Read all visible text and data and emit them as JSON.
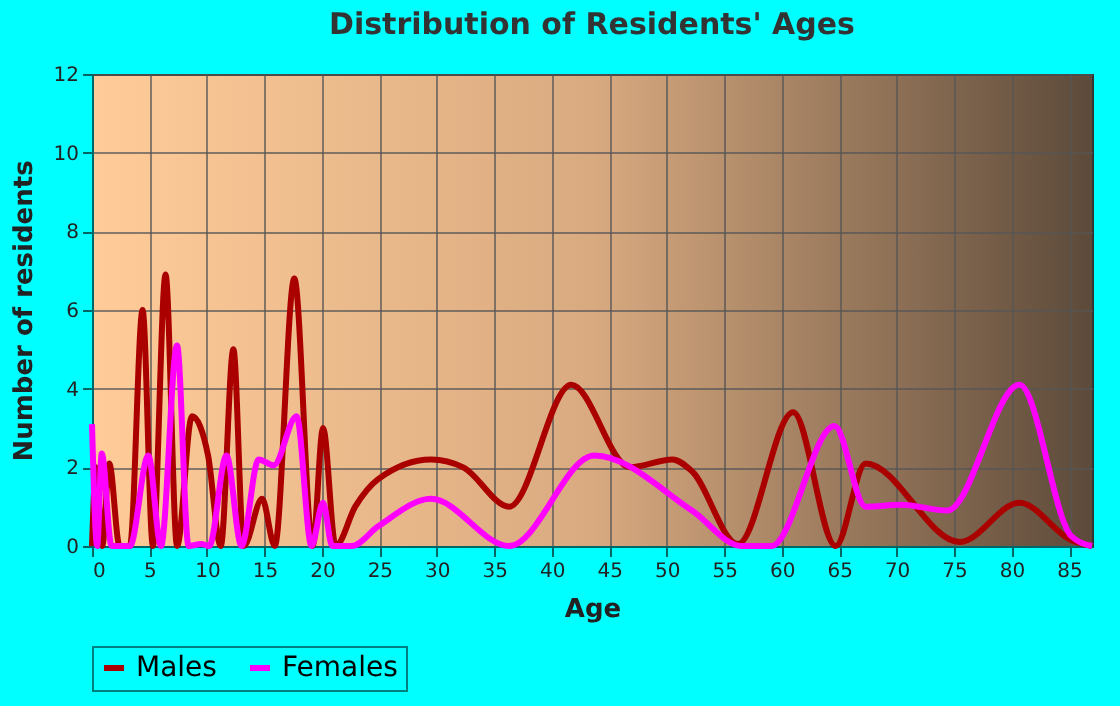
{
  "chart_data": {
    "type": "line",
    "title": "Distribution of Residents' Ages",
    "xlabel": "Age",
    "ylabel": "Number of residents",
    "xlim": [
      0,
      87
    ],
    "xticks": [
      0,
      5,
      10,
      15,
      20,
      25,
      30,
      35,
      40,
      45,
      50,
      55,
      60,
      65,
      70,
      75,
      80,
      85
    ],
    "ylim": [
      0,
      12
    ],
    "yticks": [
      0,
      2,
      4,
      6,
      8,
      10,
      12
    ],
    "grid": true,
    "legend": "bottom",
    "marker": "none",
    "line_style": "solid",
    "series": [
      {
        "name": "Males",
        "color": "#aa0000",
        "x": [
          0,
          0.35,
          0.9,
          1.5,
          2.4,
          3.3,
          4.4,
          5.3,
          6.4,
          7.4,
          8.7,
          10.1,
          11.2,
          12.3,
          13.2,
          14.8,
          15.9,
          17.6,
          19.2,
          20.1,
          21.2,
          22.9,
          24.9,
          29.5,
          32.3,
          36.3,
          41.7,
          46.8,
          50.5,
          52.2,
          56.2,
          61,
          64.7,
          67.3,
          75.5,
          80.7,
          85.2,
          87
        ],
        "values": [
          0,
          2,
          0,
          2.1,
          0,
          0,
          6,
          0,
          6.9,
          0,
          3.3,
          2.3,
          0,
          5,
          0,
          1.2,
          0,
          6.8,
          0,
          3,
          0,
          1,
          1.7,
          2.2,
          2,
          1,
          4.1,
          2,
          2.2,
          1.9,
          0.05,
          3.4,
          0,
          2.1,
          0.1,
          1.1,
          0.15,
          0
        ]
      },
      {
        "name": "Females",
        "color": "#ff00ff",
        "x": [
          0,
          0.45,
          0.85,
          1.7,
          3.3,
          4.9,
          6,
          7.4,
          8.4,
          9.5,
          10.2,
          11.7,
          13,
          14.5,
          15.8,
          17.8,
          19.1,
          20.1,
          20.9,
          22.6,
          24.9,
          29.5,
          36.3,
          43.7,
          52.2,
          56.5,
          59.1,
          64.6,
          67.3,
          70.4,
          74.4,
          80.7,
          85.2,
          87
        ],
        "values": [
          3.1,
          0,
          2.35,
          0,
          0,
          2.3,
          0,
          5.1,
          0,
          0.05,
          0,
          2.3,
          0,
          2.2,
          2.05,
          3.3,
          0,
          1.1,
          0,
          0,
          0.5,
          1.2,
          0,
          2.3,
          0.9,
          0,
          0,
          3.05,
          1,
          1.05,
          0.9,
          4.1,
          0.25,
          0
        ]
      }
    ]
  }
}
